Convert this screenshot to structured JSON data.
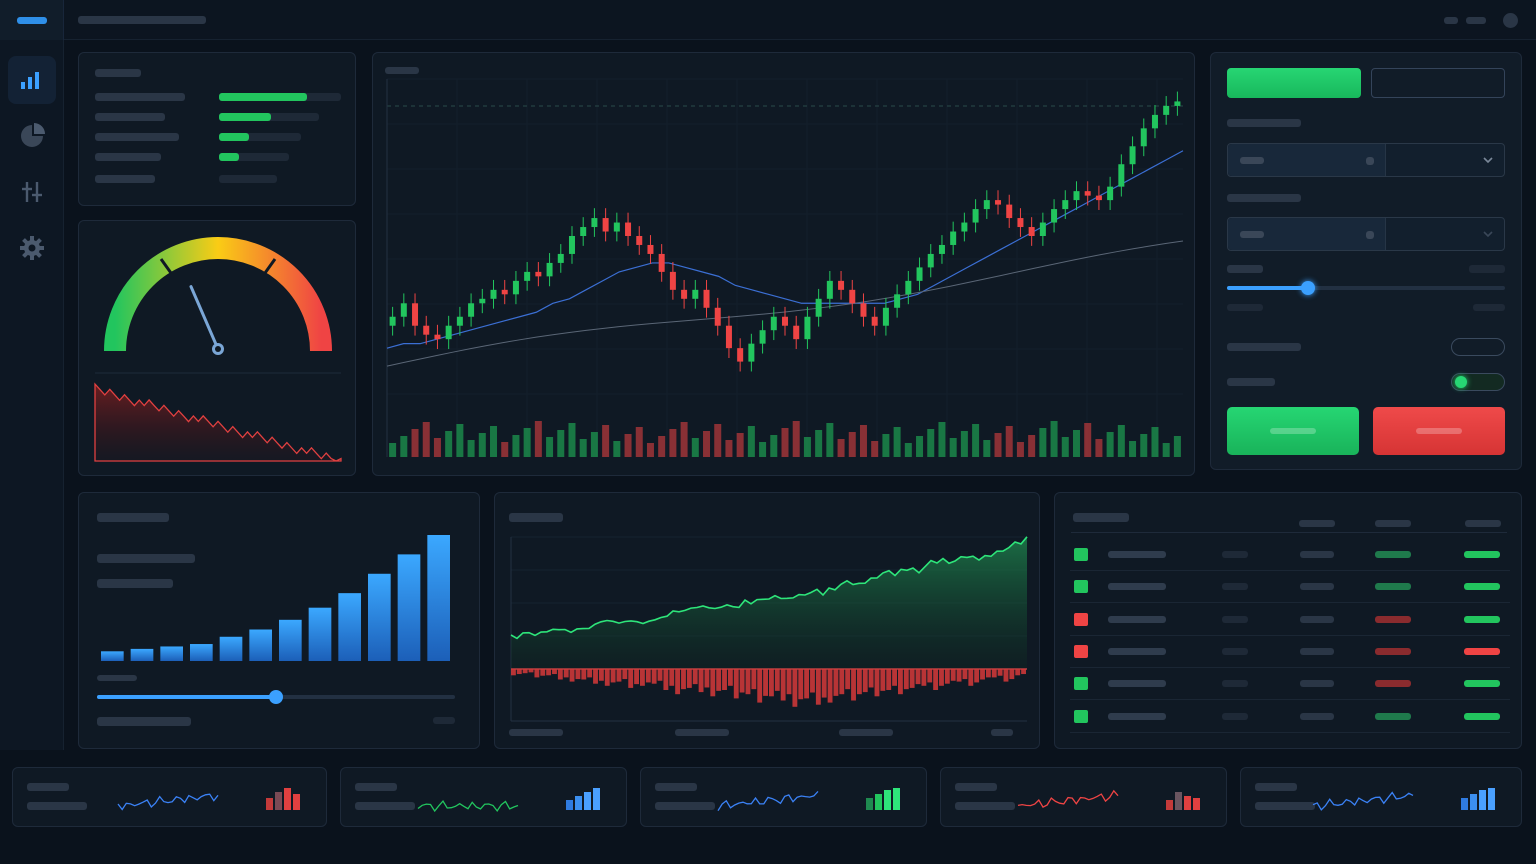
{
  "app": {
    "accent": "#2f8fe8",
    "up_color": "#22c55e",
    "down_color": "#ef4444"
  },
  "sidebar": {
    "items": [
      {
        "icon": "bar-chart-icon",
        "active": true
      },
      {
        "icon": "pie-chart-icon",
        "active": false
      },
      {
        "icon": "sliders-icon",
        "active": false
      },
      {
        "icon": "gear-icon",
        "active": false
      }
    ]
  },
  "kpi_bars": {
    "fill_fractions": [
      0.72,
      0.52,
      0.37,
      0.28
    ]
  },
  "gauge": {
    "value_fraction": 0.37,
    "zones": [
      "#22c55e",
      "#facc15",
      "#ef4444"
    ]
  },
  "controls": {
    "slider_fraction": 0.29,
    "toggle_1_on": false,
    "toggle_2_on": true
  },
  "bar_panel": {
    "slider_fraction": 0.5
  },
  "positions_table": {
    "rows": [
      {
        "status": "up",
        "delta1": "up",
        "delta2": "up"
      },
      {
        "status": "up",
        "delta1": "up",
        "delta2": "up"
      },
      {
        "status": "down",
        "delta1": "down",
        "delta2": "up"
      },
      {
        "status": "down",
        "delta1": "down",
        "delta2": "down"
      },
      {
        "status": "up",
        "delta1": "down",
        "delta2": "up"
      },
      {
        "status": "up",
        "delta1": "up",
        "delta2": "up"
      }
    ]
  },
  "chart_data": [
    {
      "type": "candlestick",
      "series": [
        {
          "name": "",
          "values": [
            52,
            55,
            50,
            48,
            47,
            50,
            52,
            55,
            56,
            58,
            57,
            60,
            62,
            61,
            64,
            66,
            70,
            72,
            74,
            71,
            73,
            70,
            68,
            66,
            62,
            58,
            56,
            58,
            54,
            50,
            45,
            42,
            46,
            49,
            52,
            50,
            47,
            52,
            56,
            60,
            58,
            55,
            52,
            50,
            54,
            57,
            60,
            63,
            66,
            68,
            71,
            73,
            76,
            78,
            77,
            74,
            72,
            70,
            73,
            76,
            78,
            80,
            79,
            78,
            81,
            86,
            90,
            94,
            97,
            99,
            100
          ]
        },
        {
          "name": "",
          "values": [
            45,
            46,
            46,
            47,
            48,
            49,
            50,
            51,
            52,
            53,
            55,
            56,
            58,
            60,
            62,
            63,
            64,
            64,
            63,
            62,
            61,
            59,
            58,
            57,
            56,
            55,
            55,
            55,
            55,
            55,
            55,
            56,
            57,
            59,
            61,
            63,
            65,
            67,
            69,
            71,
            73,
            75,
            77,
            79,
            81,
            83,
            85,
            87,
            89
          ]
        }
      ]
    },
    {
      "type": "bar",
      "values": [
        4,
        5,
        6,
        7,
        10,
        13,
        17,
        22,
        28,
        36,
        44,
        52
      ]
    },
    {
      "type": "area",
      "series": [
        {
          "name": "",
          "values": [
            20,
            22,
            21,
            24,
            26,
            25,
            28,
            27,
            30,
            29,
            31,
            30,
            33,
            36,
            35,
            38,
            40,
            39,
            42,
            41,
            44,
            43,
            46,
            45,
            48,
            50,
            49,
            53,
            55,
            54,
            58,
            62,
            61,
            65,
            64,
            68,
            70,
            69,
            72,
            71,
            74,
            78,
            80,
            84
          ]
        },
        {
          "name": "",
          "values": [
            -3,
            -2,
            -4,
            -3,
            -5,
            -6,
            -5,
            -7,
            -8,
            -6,
            -9,
            -8,
            -7,
            -10,
            -12,
            -9,
            -11,
            -13,
            -10,
            -14,
            -12,
            -16,
            -13,
            -15,
            -18,
            -14,
            -17,
            -16,
            -12,
            -15,
            -11,
            -13,
            -10,
            -12,
            -9,
            -8,
            -10,
            -7,
            -6,
            -8,
            -5,
            -4,
            -6,
            -3
          ]
        }
      ]
    }
  ]
}
